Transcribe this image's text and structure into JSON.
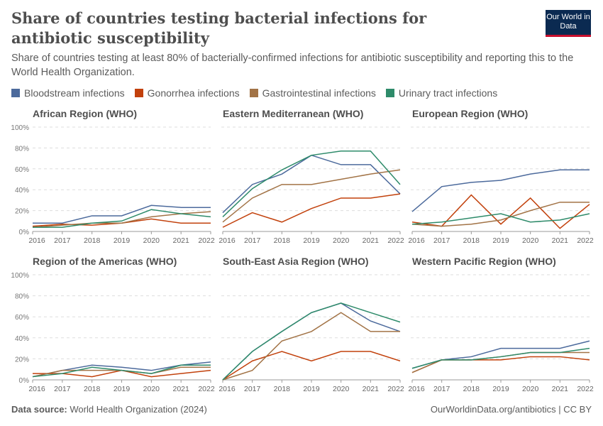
{
  "header": {
    "title": "Share of countries testing bacterial infections for antibiotic susceptibility",
    "subtitle": "Share of countries testing at least 80% of bacterially-confirmed infections for antibiotic susceptibility and reporting this to the World Health Organization.",
    "logo": "Our World in Data"
  },
  "footer": {
    "source_label": "Data source:",
    "source": "World Health Organization (2024)",
    "credit": "OurWorldinData.org/antibiotics | CC BY"
  },
  "chart_data": {
    "type": "line",
    "x": [
      2016,
      2017,
      2018,
      2019,
      2020,
      2021,
      2022
    ],
    "ylim": [
      0,
      100
    ],
    "yticks": [
      "0%",
      "20%",
      "40%",
      "60%",
      "80%",
      "100%"
    ],
    "grid": true,
    "legend_placement": "top",
    "legend": [
      {
        "name": "Bloodstream infections",
        "color": "#4c6a9c"
      },
      {
        "name": "Gonorrhea infections",
        "color": "#c2410c"
      },
      {
        "name": "Gastrointestinal infections",
        "color": "#a27346"
      },
      {
        "name": "Urinary tract infections",
        "color": "#2e8b6a"
      }
    ],
    "panels": [
      {
        "title": "African Region (WHO)",
        "series": [
          [
            8,
            8,
            15,
            15,
            25,
            23,
            23
          ],
          [
            5,
            7,
            6,
            8,
            12,
            8,
            8
          ],
          [
            4,
            6,
            8,
            8,
            14,
            17,
            19
          ],
          [
            4,
            4,
            8,
            10,
            21,
            17,
            14
          ]
        ]
      },
      {
        "title": "Eastern Mediterranean (WHO)",
        "series": [
          [
            18,
            45,
            55,
            73,
            64,
            64,
            36
          ],
          [
            4,
            18,
            9,
            22,
            32,
            32,
            36
          ],
          [
            9,
            32,
            45,
            45,
            50,
            55,
            59
          ],
          [
            14,
            41,
            59,
            73,
            77,
            77,
            45
          ]
        ]
      },
      {
        "title": "European Region (WHO)",
        "series": [
          [
            19,
            43,
            47,
            49,
            55,
            59,
            59
          ],
          [
            9,
            5,
            35,
            7,
            32,
            3,
            26
          ],
          [
            7,
            5,
            7,
            11,
            20,
            28,
            28
          ],
          [
            7,
            9,
            13,
            17,
            9,
            11,
            17
          ]
        ]
      },
      {
        "title": "Region of the Americas (WHO)",
        "series": [
          [
            3,
            9,
            14,
            12,
            9,
            14,
            17
          ],
          [
            6,
            6,
            3,
            9,
            3,
            6,
            9
          ],
          [
            3,
            9,
            9,
            9,
            6,
            12,
            12
          ],
          [
            3,
            6,
            12,
            9,
            6,
            14,
            14
          ]
        ]
      },
      {
        "title": "South-East Asia Region (WHO)",
        "series": [
          [
            0,
            27,
            46,
            64,
            73,
            56,
            46
          ],
          [
            0,
            18,
            27,
            18,
            27,
            27,
            18
          ],
          [
            0,
            9,
            37,
            46,
            64,
            46,
            46
          ],
          [
            0,
            27,
            46,
            64,
            73,
            64,
            55
          ]
        ]
      },
      {
        "title": "Western Pacific Region (WHO)",
        "series": [
          [
            11,
            19,
            22,
            30,
            30,
            30,
            37
          ],
          [
            7,
            19,
            19,
            19,
            22,
            22,
            19
          ],
          [
            7,
            19,
            19,
            22,
            26,
            26,
            26
          ],
          [
            11,
            19,
            19,
            22,
            26,
            26,
            30
          ]
        ]
      }
    ]
  }
}
